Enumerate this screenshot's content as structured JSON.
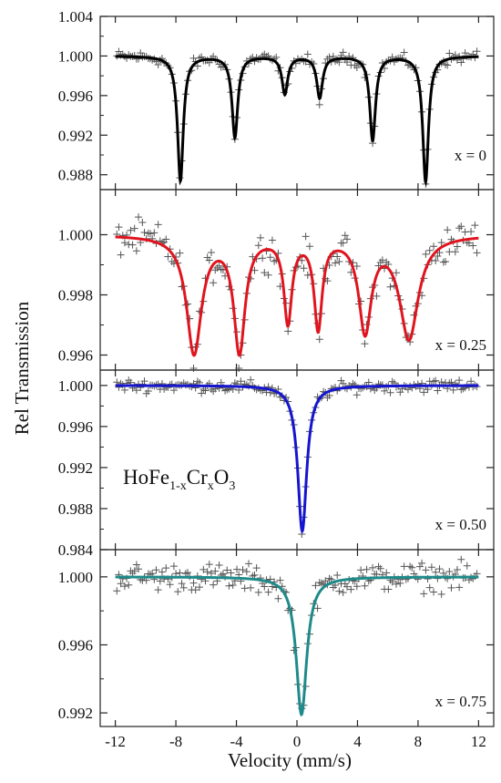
{
  "chart_data": {
    "type": "scatter",
    "ylabel": "Rel Transmission",
    "xlabel": "Velocity (mm/s)",
    "xlim": [
      -13,
      13
    ],
    "x_ticks": [
      -12,
      -8,
      -4,
      0,
      4,
      8,
      12
    ],
    "x_tick_labels": [
      "-12",
      "-8",
      "-4",
      "0",
      "4",
      "8",
      "12"
    ],
    "compound_label": {
      "main1": "HoFe",
      "sub1": "1-x",
      "main2": "Cr",
      "sub2": "x",
      "main3": "O",
      "sub3": "3"
    },
    "colors": {
      "data_markers": "#555555",
      "fit_x0": "#000000",
      "fit_x025": "#e0141e",
      "fit_x050": "#1515d0",
      "fit_x075": "#1f8a8a"
    },
    "panels": [
      {
        "label": "x = 0",
        "fit_color": "#000000",
        "ylim": [
          0.9865,
          1.004
        ],
        "y_ticks": [
          1.004,
          1.0,
          0.996,
          0.992,
          0.988
        ],
        "y_tick_labels": [
          "1.004",
          "1.000",
          "0.996",
          "0.992",
          "0.988"
        ],
        "baseline": 1.0,
        "lines": [
          {
            "center": -7.7,
            "depth": 0.0126,
            "hwhm": 0.23
          },
          {
            "center": -4.1,
            "depth": 0.0082,
            "hwhm": 0.23
          },
          {
            "center": -0.8,
            "depth": 0.0038,
            "hwhm": 0.23
          },
          {
            "center": 1.5,
            "depth": 0.0042,
            "hwhm": 0.23
          },
          {
            "center": 5.0,
            "depth": 0.0085,
            "hwhm": 0.23
          },
          {
            "center": 8.5,
            "depth": 0.0127,
            "hwhm": 0.23
          }
        ],
        "noise": 0.0006
      },
      {
        "label": "x = 0.25",
        "fit_color": "#e0141e",
        "ylim": [
          0.9955,
          1.0015
        ],
        "y_ticks": [
          1.0,
          0.998,
          0.996
        ],
        "y_tick_labels": [
          "1.000",
          "0.998",
          "0.996"
        ],
        "baseline": 1.0,
        "lines": [
          {
            "center": -6.8,
            "depth": 0.0039,
            "hwhm": 0.6
          },
          {
            "center": -3.8,
            "depth": 0.0038,
            "hwhm": 0.45
          },
          {
            "center": -0.6,
            "depth": 0.0028,
            "hwhm": 0.32
          },
          {
            "center": 1.4,
            "depth": 0.003,
            "hwhm": 0.32
          },
          {
            "center": 4.5,
            "depth": 0.0031,
            "hwhm": 0.5
          },
          {
            "center": 7.4,
            "depth": 0.0034,
            "hwhm": 0.75
          }
        ],
        "noise": 0.0006
      },
      {
        "label": "x = 0.50",
        "fit_color": "#1515d0",
        "ylim": [
          0.984,
          1.0015
        ],
        "y_ticks": [
          1.0,
          0.996,
          0.992,
          0.988,
          0.984
        ],
        "y_tick_labels": [
          "1.000",
          "0.996",
          "0.992",
          "0.988",
          "0.984"
        ],
        "baseline": 1.0,
        "lines": [
          {
            "center": 0.35,
            "depth": 0.0142,
            "hwhm": 0.36
          }
        ],
        "noise": 0.0006
      },
      {
        "label": "x = 0.75",
        "fit_color": "#1f8a8a",
        "ylim": [
          0.9912,
          1.0016
        ],
        "y_ticks": [
          1.0,
          0.996,
          0.992
        ],
        "y_tick_labels": [
          "1.000",
          "0.996",
          "0.992"
        ],
        "baseline": 1.0,
        "lines": [
          {
            "center": 0.3,
            "depth": 0.0081,
            "hwhm": 0.42
          }
        ],
        "noise": 0.0008
      }
    ]
  }
}
